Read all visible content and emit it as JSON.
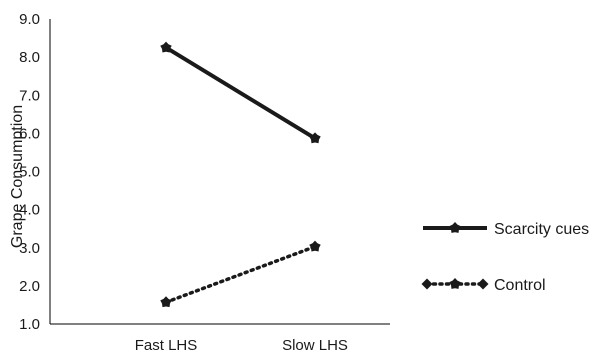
{
  "chart_data": {
    "type": "line",
    "title": "",
    "xlabel": "",
    "ylabel": "Grape Consumption",
    "categories": [
      "Fast LHS",
      "Slow LHS"
    ],
    "ylim": [
      1.0,
      9.0
    ],
    "yticks": [
      "1.0",
      "2.0",
      "3.0",
      "4.0",
      "5.0",
      "6.0",
      "7.0",
      "8.0",
      "9.0"
    ],
    "grid": false,
    "legend_position": "right",
    "series": [
      {
        "name": "Scarcity cues",
        "values": [
          8.25,
          5.87
        ],
        "style": "solid",
        "color": "#1a1a1a"
      },
      {
        "name": "Control",
        "values": [
          1.57,
          3.03
        ],
        "style": "dotted",
        "color": "#1a1a1a"
      }
    ]
  }
}
